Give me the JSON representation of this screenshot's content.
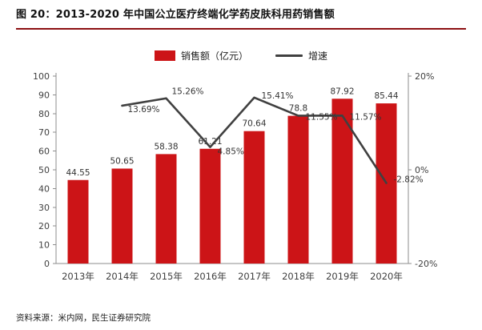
{
  "title": "图 20：2013-2020 年中国公立医疗终端化学药皮肤科用药销售额",
  "legend": {
    "bar_label": "销售额（亿元）",
    "line_label": "增速"
  },
  "footer": "资料来源：米内网，民生证券研究院",
  "colors": {
    "bar": "#cc1417",
    "line": "#404040",
    "title_rule": "#8c1012",
    "axis": "#8c8c8c",
    "tick_text": "#404040",
    "data_label": "#333333"
  },
  "chart_data": {
    "type": "bar+line combo",
    "title": "2013-2020 年中国公立医疗终端化学药皮肤科用药销售额",
    "categories": [
      "2013年",
      "2014年",
      "2015年",
      "2016年",
      "2017年",
      "2018年",
      "2019年",
      "2020年"
    ],
    "series": [
      {
        "name": "销售额（亿元）",
        "type": "bar",
        "axis": "left",
        "values": [
          44.55,
          50.65,
          58.38,
          61.21,
          70.64,
          78.8,
          87.92,
          85.44
        ],
        "labels": [
          "44.55",
          "50.65",
          "58.38",
          "61.21",
          "70.64",
          "78.8",
          "87.92",
          "85.44"
        ]
      },
      {
        "name": "增速",
        "type": "line",
        "axis": "right",
        "values": [
          null,
          13.69,
          15.26,
          4.85,
          15.41,
          11.55,
          11.57,
          -2.82
        ],
        "labels": [
          "",
          "13.69%",
          "15.26%",
          "4.85%",
          "15.41%",
          "11.55%",
          "11.57%",
          "-2.82%"
        ]
      }
    ],
    "left_axis": {
      "min": 0,
      "max": 100,
      "step": 10,
      "tick_labels": [
        "0",
        "10",
        "20",
        "30",
        "40",
        "50",
        "60",
        "70",
        "80",
        "90",
        "100"
      ]
    },
    "right_axis": {
      "min": -20,
      "max": 20,
      "tick_labels": [
        "20%",
        "0%",
        "-20%"
      ],
      "tick_values": [
        20,
        0,
        -20
      ]
    },
    "grid": false,
    "legend_position": "top"
  }
}
